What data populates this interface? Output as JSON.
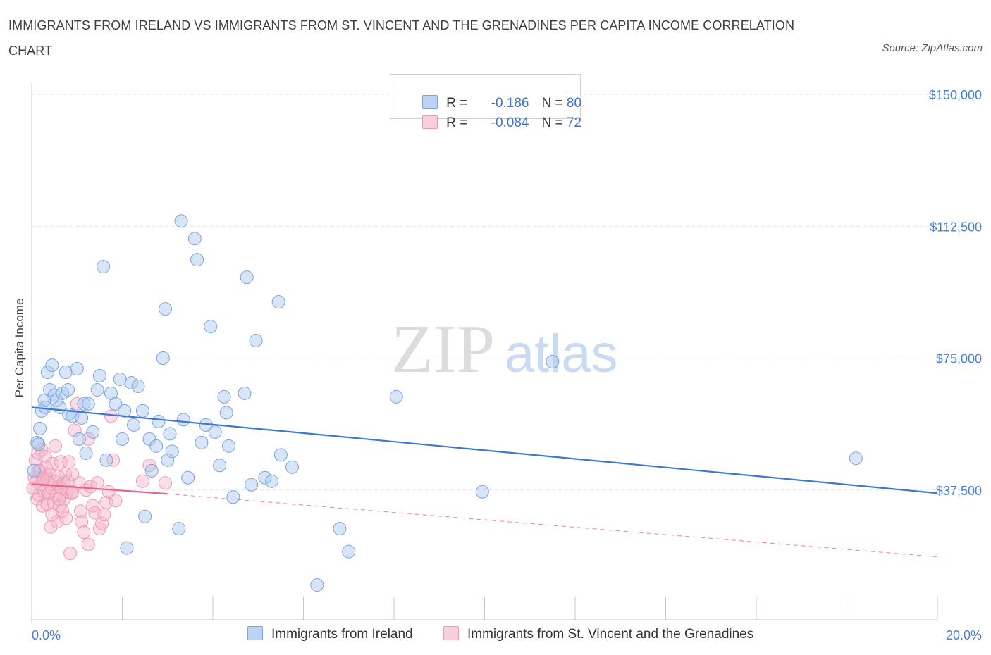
{
  "title": "IMMIGRANTS FROM IRELAND VS IMMIGRANTS FROM ST. VINCENT AND THE GRENADINES PER CAPITA INCOME CORRELATION CHART",
  "source": "Source: ZipAtlas.com",
  "watermark": {
    "zip": "ZIP",
    "atlas": "atlas"
  },
  "colors": {
    "blue": "#3a78d6",
    "blue_fill": "#a9c6ee",
    "pink": "#e8608e",
    "pink_fill": "#f4b3c7",
    "tick": "#4a7fd0"
  },
  "legend": {
    "rows": [
      {
        "r_label": "R = ",
        "r_value": "-0.186",
        "n_label": "N = ",
        "n_value": "80"
      },
      {
        "r_label": "R = ",
        "r_value": "-0.084",
        "n_label": "N = ",
        "n_value": "72"
      }
    ]
  },
  "chart_data": {
    "type": "scatter",
    "title": "IMMIGRANTS FROM IRELAND VS IMMIGRANTS FROM ST. VINCENT AND THE GRENADINES PER CAPITA INCOME CORRELATION CHART",
    "xlabel": "",
    "ylabel": "Per Capita Income",
    "xlim": [
      0,
      20
    ],
    "ylim": [
      0,
      150000
    ],
    "x_tick_labels": [
      "0.0%",
      "20.0%"
    ],
    "y_ticks": [
      37500,
      75000,
      112500,
      150000
    ],
    "y_tick_labels": [
      "$37,500",
      "$75,000",
      "$112,500",
      "$150,000"
    ],
    "grid": true,
    "legend_position": "top-center",
    "series": [
      {
        "name": "Immigrants from Ireland",
        "color": "#3a78d6",
        "trend": {
          "x": [
            0,
            20
          ],
          "y": [
            61000,
            36600
          ]
        },
        "points": [
          [
            0.05,
            43000
          ],
          [
            0.12,
            51000
          ],
          [
            0.18,
            55000
          ],
          [
            0.22,
            60000
          ],
          [
            0.28,
            63000
          ],
          [
            0.35,
            71000
          ],
          [
            0.4,
            66000
          ],
          [
            0.45,
            73000
          ],
          [
            0.5,
            64500
          ],
          [
            0.55,
            63000
          ],
          [
            0.62,
            61000
          ],
          [
            0.68,
            65000
          ],
          [
            0.75,
            71000
          ],
          [
            0.82,
            59000
          ],
          [
            0.9,
            58500
          ],
          [
            1.0,
            72000
          ],
          [
            1.05,
            52000
          ],
          [
            1.1,
            58000
          ],
          [
            1.15,
            62000
          ],
          [
            1.25,
            62000
          ],
          [
            1.35,
            54000
          ],
          [
            1.45,
            66000
          ],
          [
            1.5,
            70000
          ],
          [
            1.58,
            101000
          ],
          [
            1.65,
            46000
          ],
          [
            1.75,
            65000
          ],
          [
            1.85,
            62000
          ],
          [
            1.95,
            69000
          ],
          [
            2.05,
            60000
          ],
          [
            2.1,
            21000
          ],
          [
            2.2,
            68000
          ],
          [
            2.25,
            56000
          ],
          [
            2.35,
            67000
          ],
          [
            2.45,
            60000
          ],
          [
            2.5,
            30000
          ],
          [
            2.6,
            52000
          ],
          [
            2.65,
            43000
          ],
          [
            2.75,
            50000
          ],
          [
            2.8,
            57000
          ],
          [
            2.9,
            75000
          ],
          [
            2.95,
            89000
          ],
          [
            3.05,
            53500
          ],
          [
            3.1,
            48500
          ],
          [
            3.25,
            26500
          ],
          [
            3.3,
            114000
          ],
          [
            3.35,
            57500
          ],
          [
            3.45,
            41000
          ],
          [
            3.6,
            109000
          ],
          [
            3.65,
            103000
          ],
          [
            3.75,
            51000
          ],
          [
            3.85,
            56000
          ],
          [
            3.95,
            84000
          ],
          [
            4.05,
            54000
          ],
          [
            4.15,
            44500
          ],
          [
            4.25,
            64000
          ],
          [
            4.3,
            59500
          ],
          [
            4.35,
            50000
          ],
          [
            4.45,
            35500
          ],
          [
            4.7,
            65000
          ],
          [
            4.75,
            98000
          ],
          [
            4.85,
            39000
          ],
          [
            4.95,
            80000
          ],
          [
            5.15,
            41000
          ],
          [
            5.3,
            40000
          ],
          [
            5.45,
            91000
          ],
          [
            5.5,
            47500
          ],
          [
            5.75,
            44000
          ],
          [
            6.3,
            10500
          ],
          [
            6.8,
            26500
          ],
          [
            7.0,
            20000
          ],
          [
            8.05,
            64000
          ],
          [
            9.95,
            37000
          ],
          [
            11.5,
            74000
          ],
          [
            18.2,
            46500
          ],
          [
            0.15,
            50500
          ],
          [
            0.3,
            61000
          ],
          [
            1.2,
            48000
          ],
          [
            3.0,
            46000
          ],
          [
            2.0,
            52000
          ],
          [
            0.8,
            66000
          ]
        ]
      },
      {
        "name": "Immigrants from St. Vincent and the Grenadines",
        "color": "#e8608e",
        "trend": {
          "x": [
            0,
            3
          ],
          "y": [
            39200,
            36400
          ],
          "dash_to": {
            "x": 20,
            "y": 18500
          }
        },
        "points": [
          [
            0.03,
            38000
          ],
          [
            0.06,
            41000
          ],
          [
            0.08,
            46000
          ],
          [
            0.1,
            40000
          ],
          [
            0.12,
            35000
          ],
          [
            0.14,
            48000
          ],
          [
            0.16,
            36000
          ],
          [
            0.18,
            43000
          ],
          [
            0.2,
            39000
          ],
          [
            0.22,
            49000
          ],
          [
            0.24,
            33000
          ],
          [
            0.26,
            41000
          ],
          [
            0.28,
            37000
          ],
          [
            0.3,
            47000
          ],
          [
            0.32,
            44000
          ],
          [
            0.34,
            33500
          ],
          [
            0.36,
            40500
          ],
          [
            0.38,
            36500
          ],
          [
            0.4,
            42000
          ],
          [
            0.42,
            27000
          ],
          [
            0.44,
            38000
          ],
          [
            0.46,
            45000
          ],
          [
            0.48,
            34000
          ],
          [
            0.5,
            40000
          ],
          [
            0.52,
            50000
          ],
          [
            0.54,
            36000
          ],
          [
            0.56,
            28500
          ],
          [
            0.58,
            41500
          ],
          [
            0.6,
            38500
          ],
          [
            0.62,
            33000
          ],
          [
            0.64,
            45500
          ],
          [
            0.66,
            38000
          ],
          [
            0.68,
            31500
          ],
          [
            0.7,
            39500
          ],
          [
            0.72,
            35000
          ],
          [
            0.74,
            42000
          ],
          [
            0.76,
            29500
          ],
          [
            0.78,
            37000
          ],
          [
            0.8,
            40000
          ],
          [
            0.82,
            45500
          ],
          [
            0.85,
            19500
          ],
          [
            0.88,
            36500
          ],
          [
            0.9,
            42000
          ],
          [
            0.95,
            54500
          ],
          [
            1.0,
            62000
          ],
          [
            1.05,
            39500
          ],
          [
            1.08,
            31500
          ],
          [
            1.1,
            28500
          ],
          [
            1.15,
            25500
          ],
          [
            1.2,
            37500
          ],
          [
            1.25,
            22000
          ],
          [
            1.3,
            38500
          ],
          [
            1.35,
            33000
          ],
          [
            1.4,
            31000
          ],
          [
            1.45,
            39500
          ],
          [
            1.5,
            26500
          ],
          [
            1.55,
            28000
          ],
          [
            1.6,
            30500
          ],
          [
            1.65,
            34000
          ],
          [
            1.7,
            37000
          ],
          [
            1.75,
            58500
          ],
          [
            1.8,
            46000
          ],
          [
            1.85,
            34500
          ],
          [
            2.45,
            40000
          ],
          [
            2.6,
            44500
          ],
          [
            2.95,
            39500
          ],
          [
            1.25,
            52000
          ],
          [
            0.15,
            43000
          ],
          [
            0.45,
            30500
          ],
          [
            0.6,
            35000
          ],
          [
            0.9,
            37000
          ],
          [
            0.25,
            40500
          ]
        ]
      }
    ]
  }
}
